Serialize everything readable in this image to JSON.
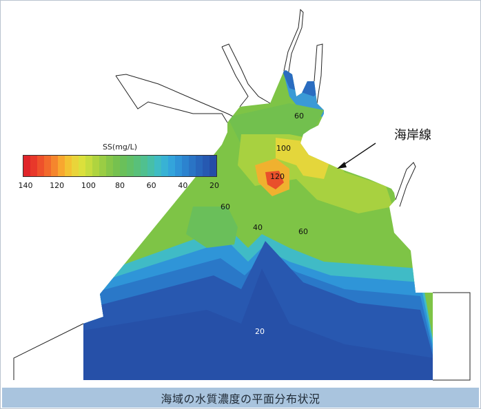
{
  "caption": "海域の水質濃度の平面分布状況",
  "legend": {
    "title": "SS(mg/L)",
    "ticks": [
      "140",
      "120",
      "100",
      "80",
      "60",
      "40",
      "20"
    ],
    "colors": [
      "#e0252a",
      "#e8382a",
      "#ee512b",
      "#f26a2c",
      "#f5862d",
      "#f8a72f",
      "#f3c232",
      "#e9d43a",
      "#dbe03c",
      "#c6dc3e",
      "#afd43f",
      "#9acd44",
      "#86c649",
      "#76c14f",
      "#6ac05a",
      "#61c068",
      "#59c07a",
      "#50c08f",
      "#47bfa7",
      "#3fbcc3",
      "#38b2d4",
      "#33a4db",
      "#2f93d7",
      "#2c83cf",
      "#2a74c5",
      "#2866bb",
      "#2659b1",
      "#244da7"
    ]
  },
  "callout": "海岸線",
  "contour_labels": [
    "60",
    "100",
    "120",
    "60",
    "40",
    "60",
    "20"
  ],
  "palette": {
    "sea_deep": "#2b56a8",
    "caption_bg": "#a9c4de"
  }
}
